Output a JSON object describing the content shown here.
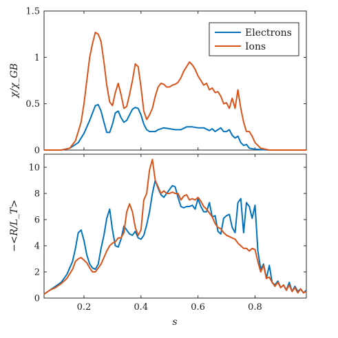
{
  "chart_data": [
    {
      "type": "line",
      "ylabel": "χ/χ_GB",
      "xlim": [
        0.06,
        0.98
      ],
      "ylim": [
        0,
        1.5
      ],
      "yticks": [
        "0",
        "0.5",
        "1",
        "1.5"
      ],
      "legend": {
        "placement": "top-right",
        "entries": [
          "Electrons",
          "Ions"
        ]
      },
      "series": [
        {
          "name": "Electrons",
          "color": "#0072BD",
          "x": [
            0.06,
            0.12,
            0.15,
            0.18,
            0.2,
            0.22,
            0.24,
            0.25,
            0.26,
            0.27,
            0.28,
            0.29,
            0.3,
            0.31,
            0.32,
            0.33,
            0.34,
            0.35,
            0.36,
            0.37,
            0.38,
            0.39,
            0.4,
            0.41,
            0.42,
            0.43,
            0.44,
            0.45,
            0.46,
            0.48,
            0.5,
            0.52,
            0.54,
            0.56,
            0.58,
            0.6,
            0.62,
            0.64,
            0.65,
            0.66,
            0.67,
            0.68,
            0.69,
            0.7,
            0.71,
            0.72,
            0.73,
            0.74,
            0.75,
            0.76,
            0.77,
            0.78,
            0.8,
            0.85,
            0.98
          ],
          "y": [
            0,
            0,
            0.02,
            0.08,
            0.18,
            0.32,
            0.48,
            0.49,
            0.42,
            0.3,
            0.19,
            0.19,
            0.28,
            0.4,
            0.42,
            0.35,
            0.3,
            0.32,
            0.38,
            0.44,
            0.46,
            0.45,
            0.38,
            0.28,
            0.22,
            0.2,
            0.2,
            0.2,
            0.22,
            0.24,
            0.23,
            0.22,
            0.22,
            0.25,
            0.25,
            0.24,
            0.24,
            0.21,
            0.23,
            0.2,
            0.22,
            0.24,
            0.2,
            0.2,
            0.22,
            0.16,
            0.13,
            0.15,
            0.08,
            0.05,
            0.06,
            0.02,
            0.01,
            0,
            0
          ]
        },
        {
          "name": "Ions",
          "color": "#D95319",
          "x": [
            0.06,
            0.12,
            0.15,
            0.17,
            0.19,
            0.2,
            0.21,
            0.22,
            0.23,
            0.24,
            0.25,
            0.26,
            0.27,
            0.28,
            0.29,
            0.3,
            0.31,
            0.32,
            0.33,
            0.34,
            0.35,
            0.36,
            0.37,
            0.38,
            0.39,
            0.4,
            0.41,
            0.42,
            0.43,
            0.44,
            0.45,
            0.46,
            0.47,
            0.48,
            0.49,
            0.5,
            0.51,
            0.52,
            0.53,
            0.54,
            0.55,
            0.56,
            0.57,
            0.58,
            0.59,
            0.6,
            0.61,
            0.62,
            0.63,
            0.64,
            0.65,
            0.66,
            0.67,
            0.68,
            0.69,
            0.7,
            0.71,
            0.72,
            0.73,
            0.74,
            0.75,
            0.76,
            0.77,
            0.78,
            0.79,
            0.8,
            0.82,
            0.85,
            0.98
          ],
          "y": [
            0,
            0,
            0.02,
            0.1,
            0.3,
            0.5,
            0.75,
            1.0,
            1.15,
            1.27,
            1.25,
            1.17,
            0.95,
            0.7,
            0.52,
            0.48,
            0.62,
            0.72,
            0.6,
            0.45,
            0.47,
            0.6,
            0.75,
            0.93,
            0.9,
            0.68,
            0.42,
            0.33,
            0.38,
            0.45,
            0.58,
            0.68,
            0.72,
            0.71,
            0.68,
            0.68,
            0.7,
            0.71,
            0.73,
            0.78,
            0.85,
            0.9,
            0.95,
            0.92,
            0.87,
            0.8,
            0.75,
            0.7,
            0.72,
            0.65,
            0.67,
            0.62,
            0.63,
            0.58,
            0.5,
            0.51,
            0.45,
            0.56,
            0.45,
            0.65,
            0.45,
            0.3,
            0.2,
            0.2,
            0.15,
            0.08,
            0.02,
            0,
            0
          ]
        }
      ]
    },
    {
      "type": "line",
      "xlabel": "s",
      "ylabel": "−<R/L_T>",
      "xlim": [
        0.06,
        0.98
      ],
      "ylim": [
        0,
        11
      ],
      "yticks": [
        "0",
        "2",
        "4",
        "6",
        "8",
        "10"
      ],
      "xticks": [
        "0.2",
        "0.4",
        "0.6",
        "0.8"
      ],
      "series": [
        {
          "name": "Electrons",
          "color": "#0072BD",
          "x": [
            0.06,
            0.08,
            0.1,
            0.12,
            0.14,
            0.16,
            0.17,
            0.18,
            0.19,
            0.2,
            0.21,
            0.22,
            0.23,
            0.24,
            0.25,
            0.26,
            0.27,
            0.28,
            0.29,
            0.3,
            0.31,
            0.32,
            0.33,
            0.34,
            0.35,
            0.36,
            0.37,
            0.38,
            0.39,
            0.4,
            0.41,
            0.42,
            0.43,
            0.44,
            0.45,
            0.46,
            0.47,
            0.48,
            0.49,
            0.5,
            0.51,
            0.52,
            0.53,
            0.54,
            0.55,
            0.56,
            0.57,
            0.58,
            0.59,
            0.6,
            0.61,
            0.62,
            0.63,
            0.64,
            0.65,
            0.66,
            0.67,
            0.68,
            0.69,
            0.7,
            0.71,
            0.72,
            0.73,
            0.74,
            0.75,
            0.76,
            0.77,
            0.78,
            0.79,
            0.8,
            0.81,
            0.82,
            0.83,
            0.84,
            0.85,
            0.86,
            0.87,
            0.88,
            0.89,
            0.9,
            0.91,
            0.92,
            0.93,
            0.94,
            0.95,
            0.96,
            0.97,
            0.98
          ],
          "y": [
            0.3,
            0.6,
            0.9,
            1.2,
            1.8,
            2.8,
            3.8,
            5.0,
            5.2,
            4.4,
            3.3,
            2.6,
            2.3,
            2.2,
            2.6,
            3.8,
            4.8,
            6.1,
            6.8,
            5.2,
            4.0,
            3.9,
            4.5,
            5.5,
            5.2,
            4.9,
            4.8,
            5.1,
            4.6,
            4.5,
            4.8,
            5.6,
            6.6,
            8.0,
            9.0,
            8.4,
            7.9,
            7.7,
            8.0,
            8.3,
            8.6,
            8.5,
            7.7,
            7.0,
            6.9,
            7.0,
            7.0,
            7.1,
            6.8,
            7.6,
            7.0,
            6.6,
            6.6,
            7.3,
            6.2,
            6.3,
            5.1,
            4.9,
            6.1,
            6.3,
            6.4,
            5.4,
            5.0,
            7.3,
            7.6,
            5.0,
            7.3,
            7.0,
            6.1,
            7.1,
            3.6,
            2.2,
            2.6,
            1.5,
            2.5,
            1.2,
            1.0,
            1.3,
            0.8,
            1.0,
            0.6,
            1.2,
            0.5,
            0.9,
            0.5,
            0.7,
            0.4,
            0.6
          ]
        },
        {
          "name": "Ions",
          "color": "#D95319",
          "x": [
            0.06,
            0.08,
            0.1,
            0.12,
            0.14,
            0.16,
            0.17,
            0.18,
            0.19,
            0.2,
            0.21,
            0.22,
            0.23,
            0.24,
            0.25,
            0.26,
            0.27,
            0.28,
            0.29,
            0.3,
            0.31,
            0.32,
            0.33,
            0.34,
            0.35,
            0.36,
            0.37,
            0.38,
            0.39,
            0.4,
            0.41,
            0.42,
            0.43,
            0.44,
            0.45,
            0.46,
            0.47,
            0.48,
            0.49,
            0.5,
            0.51,
            0.52,
            0.53,
            0.54,
            0.55,
            0.56,
            0.57,
            0.58,
            0.59,
            0.6,
            0.61,
            0.62,
            0.63,
            0.64,
            0.65,
            0.66,
            0.67,
            0.68,
            0.69,
            0.7,
            0.71,
            0.72,
            0.73,
            0.74,
            0.75,
            0.76,
            0.77,
            0.78,
            0.79,
            0.8,
            0.81,
            0.82,
            0.83,
            0.84,
            0.85,
            0.86,
            0.87,
            0.88,
            0.89,
            0.9,
            0.91,
            0.92,
            0.93,
            0.94,
            0.95,
            0.96,
            0.97,
            0.98
          ],
          "y": [
            0.3,
            0.6,
            0.8,
            1.1,
            1.5,
            2.2,
            2.8,
            3.0,
            3.1,
            2.9,
            2.7,
            2.3,
            2.0,
            2.0,
            2.3,
            2.6,
            3.1,
            3.6,
            4.0,
            4.2,
            4.3,
            4.6,
            4.6,
            5.0,
            6.6,
            7.2,
            6.6,
            5.4,
            4.8,
            5.2,
            7.5,
            8.0,
            9.8,
            10.6,
            9.0,
            8.5,
            8.0,
            8.2,
            8.0,
            8.0,
            8.1,
            8.0,
            8.0,
            7.5,
            7.8,
            7.9,
            7.5,
            7.6,
            7.5,
            7.7,
            7.4,
            7.0,
            6.8,
            6.5,
            6.2,
            5.7,
            5.4,
            5.3,
            5.0,
            4.8,
            4.7,
            4.6,
            4.5,
            4.2,
            4.0,
            3.8,
            3.8,
            3.6,
            3.8,
            3.7,
            2.8,
            2.0,
            2.5,
            1.5,
            1.6,
            1.2,
            0.9,
            1.2,
            0.8,
            1.0,
            0.6,
            1.0,
            0.5,
            0.8,
            0.4,
            0.7,
            0.4,
            0.5
          ]
        }
      ]
    }
  ]
}
